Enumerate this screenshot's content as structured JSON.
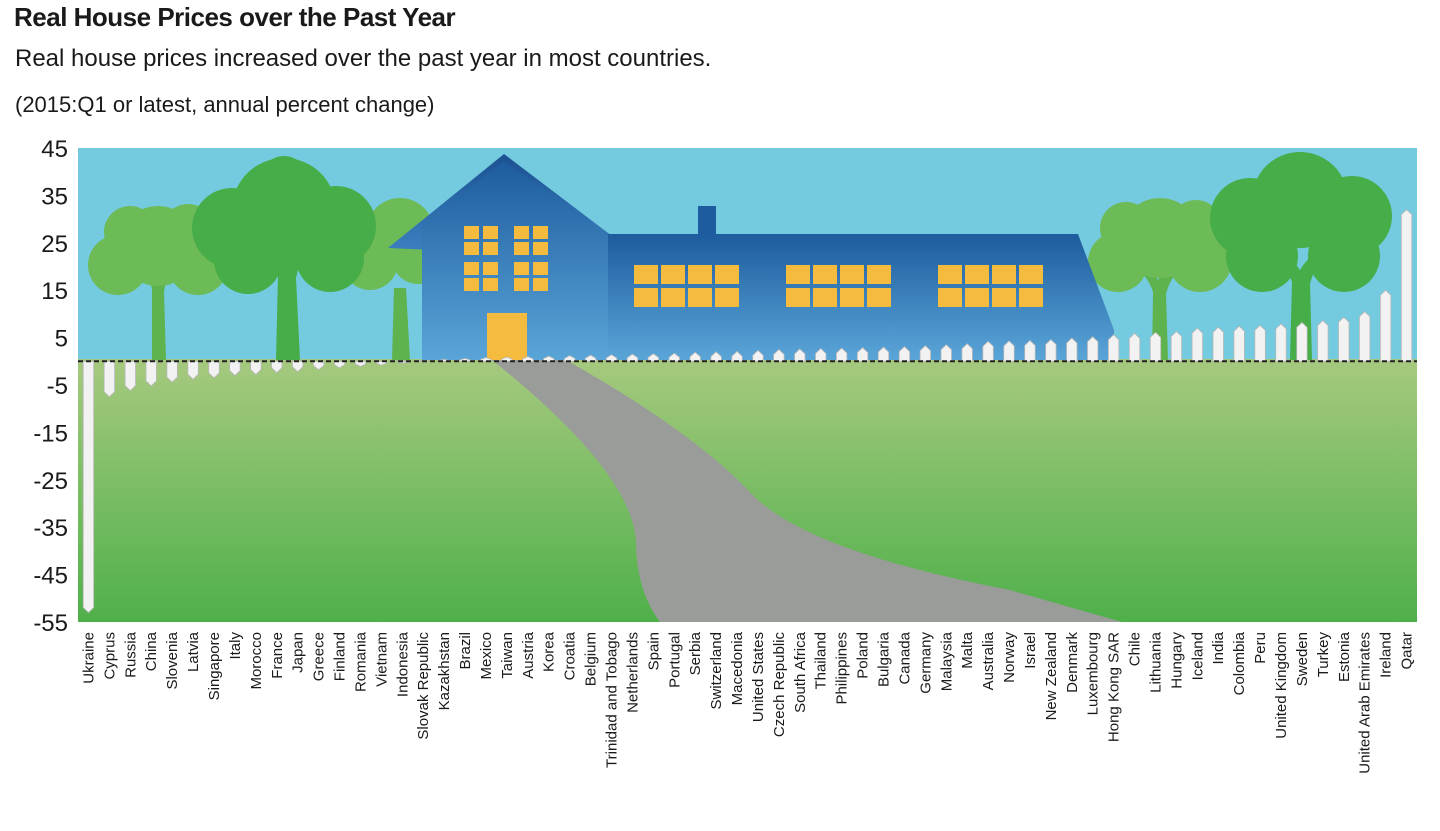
{
  "chart_data": {
    "type": "bar",
    "title": "Real House Prices over the Past Year",
    "subtitle": "Real house prices increased over the past year in most countries.",
    "units_note": "(2015:Q1 or latest, annual percent change)",
    "ylim": [
      -55,
      45
    ],
    "yticks": [
      45,
      35,
      25,
      15,
      5,
      -5,
      -15,
      -25,
      -35,
      -45,
      -55
    ],
    "grid": false,
    "legend": "none",
    "categories": [
      "Ukraine",
      "Cyprus",
      "Russia",
      "China",
      "Slovenia",
      "Latvia",
      "Singapore",
      "Italy",
      "Morocco",
      "France",
      "Japan",
      "Greece",
      "Finland",
      "Romania",
      "Vietnam",
      "Indonesia",
      "Slovak Republic",
      "Kazakhstan",
      "Brazil",
      "Mexico",
      "Taiwan",
      "Austria",
      "Korea",
      "Croatia",
      "Belgium",
      "Trinidad and Tobago",
      "Netherlands",
      "Spain",
      "Portugal",
      "Serbia",
      "Switzerland",
      "Macedonia",
      "United States",
      "Czech Republic",
      "South Africa",
      "Thailand",
      "Philippines",
      "Poland",
      "Bulgaria",
      "Canada",
      "Germany",
      "Malaysia",
      "Malta",
      "Australia",
      "Norway",
      "Israel",
      "New Zealand",
      "Denmark",
      "Luxembourg",
      "Hong Kong SAR",
      "Chile",
      "Lithuania",
      "Hungary",
      "Iceland",
      "India",
      "Colombia",
      "Peru",
      "United Kingdom",
      "Sweden",
      "Turkey",
      "Estonia",
      "United Arab Emirates",
      "Ireland",
      "Qatar"
    ],
    "values": [
      -53,
      -7.5,
      -6.2,
      -5.2,
      -4.4,
      -3.8,
      -3.5,
      -3.0,
      -2.8,
      -2.4,
      -2.2,
      -1.8,
      -1.4,
      -1.1,
      -0.8,
      -0.4,
      0.2,
      0.4,
      0.6,
      0.8,
      0.9,
      1.0,
      1.1,
      1.2,
      1.3,
      1.4,
      1.5,
      1.6,
      1.7,
      1.9,
      2.0,
      2.1,
      2.3,
      2.5,
      2.6,
      2.7,
      2.8,
      2.9,
      3.0,
      3.1,
      3.3,
      3.5,
      3.7,
      4.2,
      4.3,
      4.4,
      4.6,
      4.9,
      5.2,
      5.6,
      5.9,
      6.1,
      6.3,
      7.0,
      7.2,
      7.4,
      7.6,
      7.9,
      8.2,
      8.6,
      9.3,
      10.5,
      15.0,
      32.0
    ],
    "colors": {
      "sky": "#74cade",
      "grass_top": "#a6c97f",
      "grass_bottom": "#4fb04a",
      "house_top": "#1d5c9e",
      "house_bottom": "#5aa5d8",
      "window": "#f4bb3e",
      "door": "#f4bb3e",
      "path": "#9a9c9a",
      "tree_dark": "#46ad48",
      "tree_light": "#6dbb56",
      "trunk": "#5fb34f",
      "picket": "#f2f2f2"
    }
  }
}
